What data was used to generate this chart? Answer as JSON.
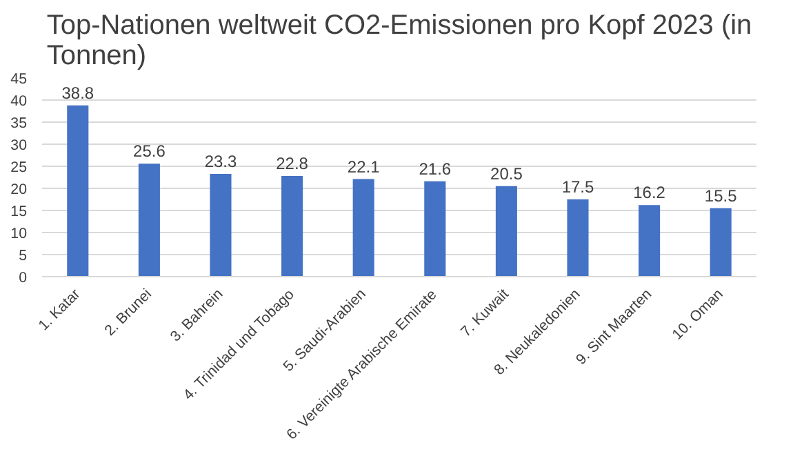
{
  "chart_data": {
    "type": "bar",
    "title": "Top-Nationen weltweit CO2-Emissionen pro Kopf 2023 (in Tonnen)",
    "categories": [
      "1. Katar",
      "2. Brunei",
      "3. Bahrein",
      "4. Trinidad und Tobago",
      "5. Saudi-Arabien",
      "6. Vereinigte Arabische Emirate",
      "7. Kuwait",
      "8. Neukaledonien",
      "9. Sint Maarten",
      "10. Oman"
    ],
    "values": [
      38.8,
      25.6,
      23.3,
      22.8,
      22.1,
      21.6,
      20.5,
      17.5,
      16.2,
      15.5
    ],
    "color": "#4472c4",
    "ylim": [
      0,
      45
    ],
    "yticks": [
      0,
      5,
      10,
      15,
      20,
      25,
      30,
      35,
      40,
      45
    ],
    "grid": "y",
    "data_labels": true
  }
}
